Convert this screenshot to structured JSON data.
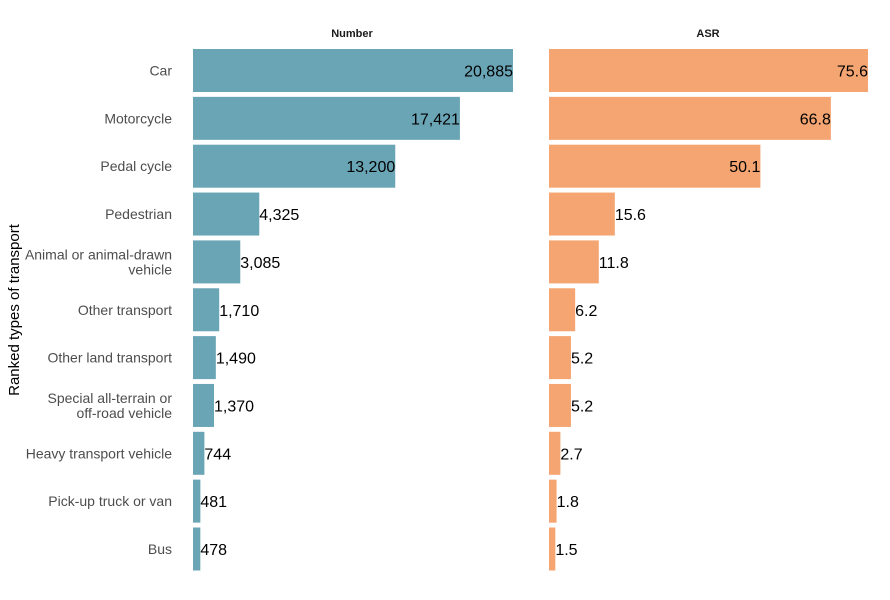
{
  "chart_data": {
    "type": "bar",
    "orientation": "horizontal",
    "ylabel": "Ranked types of transport",
    "categories": [
      [
        "Car"
      ],
      [
        "Motorcycle"
      ],
      [
        "Pedal cycle"
      ],
      [
        "Pedestrian"
      ],
      [
        "Animal or animal-drawn",
        "vehicle"
      ],
      [
        "Other transport"
      ],
      [
        "Other land transport"
      ],
      [
        "Special all-terrain or",
        "off-road vehicle"
      ],
      [
        "Heavy transport vehicle"
      ],
      [
        "Pick-up truck or van"
      ],
      [
        "Bus"
      ]
    ],
    "panels": [
      {
        "title": "Number",
        "color": "#6aa5b6",
        "xlim": [
          0,
          20885
        ],
        "values": [
          20885,
          17421,
          13200,
          4325,
          3085,
          1710,
          1490,
          1370,
          744,
          481,
          478
        ],
        "labels": [
          "20,885",
          "17,421",
          "13,200",
          "4,325",
          "3,085",
          "1,710",
          "1,490",
          "1,370",
          "744",
          "481",
          "478"
        ]
      },
      {
        "title": "ASR",
        "color": "#f5a572",
        "xlim": [
          0,
          75.6
        ],
        "values": [
          75.6,
          66.8,
          50.1,
          15.6,
          11.8,
          6.2,
          5.2,
          5.2,
          2.7,
          1.8,
          1.5
        ],
        "labels": [
          "75.6",
          "66.8",
          "50.1",
          "15.6",
          "11.8",
          "6.2",
          "5.2",
          "5.2",
          "2.7",
          "1.8",
          "1.5"
        ]
      }
    ],
    "grid": false,
    "legend": "none"
  }
}
